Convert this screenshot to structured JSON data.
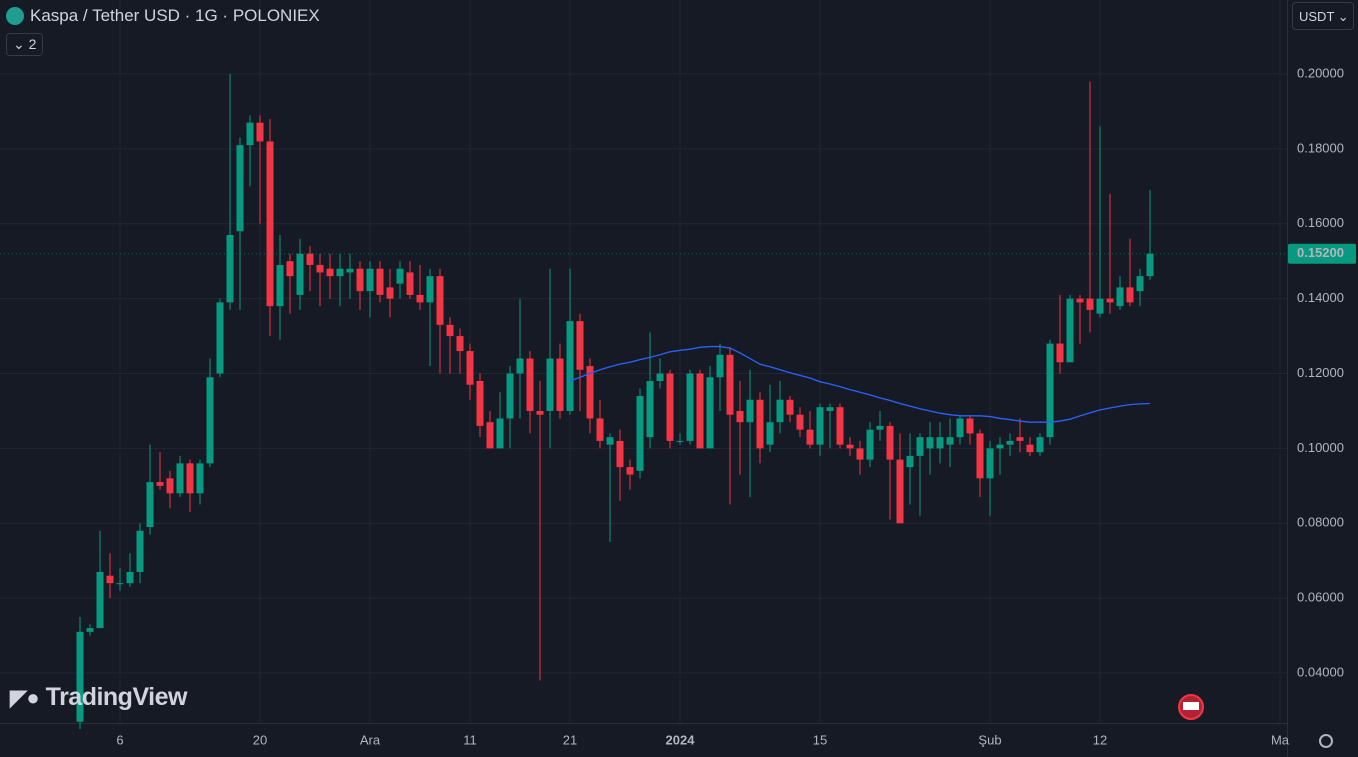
{
  "chart_data": {
    "type": "candlestick",
    "title": "Kaspa / Tether USD · 1G · POLONIEX",
    "up_color": "#089981",
    "down_color": "#f23645",
    "grid": true,
    "xlim": [
      -8,
      120.7
    ],
    "xticks": [
      {
        "value": 4,
        "label": "6"
      },
      {
        "value": 18,
        "label": "20"
      },
      {
        "value": 29,
        "label": "Ara"
      },
      {
        "value": 39,
        "label": "11"
      },
      {
        "value": 49,
        "label": "21"
      },
      {
        "value": 60,
        "label": "2024"
      },
      {
        "value": 74,
        "label": "15"
      },
      {
        "value": 91,
        "label": "Şub"
      },
      {
        "value": 102,
        "label": "12"
      },
      {
        "value": 120,
        "label": "Ma"
      }
    ],
    "ylim": [
      0.02665,
      0.21977
    ],
    "yticks": [
      {
        "value": 0.04,
        "label": "0.04000"
      },
      {
        "value": 0.06,
        "label": "0.06000"
      },
      {
        "value": 0.08,
        "label": "0.08000"
      },
      {
        "value": 0.1,
        "label": "0.10000"
      },
      {
        "value": 0.12,
        "label": "0.12000"
      },
      {
        "value": 0.14,
        "label": "0.14000"
      },
      {
        "value": 0.16,
        "label": "0.16000"
      },
      {
        "value": 0.18,
        "label": "0.18000"
      },
      {
        "value": 0.2,
        "label": "0.20000"
      }
    ],
    "last_price": {
      "value": 0.152,
      "label": "0.15200"
    },
    "open": [
      0.027,
      0.051,
      0.052,
      0.066,
      0.064,
      0.064,
      0.067,
      0.079,
      0.091,
      0.092,
      0.088,
      0.096,
      0.088,
      0.096,
      0.12,
      0.139,
      0.158,
      0.181,
      0.187,
      0.182,
      0.138,
      0.15,
      0.141,
      0.152,
      0.149,
      0.148,
      0.146,
      0.147,
      0.148,
      0.142,
      0.148,
      0.143,
      0.144,
      0.147,
      0.141,
      0.139,
      0.146,
      0.133,
      0.13,
      0.126,
      0.118,
      0.107,
      0.1,
      0.108,
      0.12,
      0.124,
      0.11,
      0.11,
      0.124,
      0.11,
      0.134,
      0.122,
      0.108,
      0.101,
      0.102,
      0.095,
      0.094,
      0.103,
      0.118,
      0.12,
      0.102,
      0.102,
      0.12,
      0.1,
      0.119,
      0.125,
      0.11,
      0.107,
      0.113,
      0.101,
      0.107,
      0.113,
      0.109,
      0.105,
      0.101,
      0.11,
      0.111,
      0.101,
      0.1,
      0.097,
      0.105,
      0.106,
      0.097,
      0.095,
      0.098,
      0.1,
      0.1,
      0.101,
      0.103,
      0.108,
      0.104,
      0.092,
      0.1,
      0.101,
      0.103,
      0.101,
      0.099,
      0.103,
      0.128,
      0.123,
      0.14,
      0.14,
      0.136,
      0.14,
      0.138,
      0.143,
      0.142,
      0.146
    ],
    "high": [
      0.055,
      0.053,
      0.078,
      0.072,
      0.068,
      0.072,
      0.08,
      0.101,
      0.099,
      0.094,
      0.098,
      0.097,
      0.097,
      0.124,
      0.14,
      0.2,
      0.183,
      0.189,
      0.189,
      0.188,
      0.157,
      0.152,
      0.156,
      0.154,
      0.152,
      0.152,
      0.152,
      0.152,
      0.15,
      0.15,
      0.15,
      0.148,
      0.15,
      0.15,
      0.149,
      0.148,
      0.148,
      0.135,
      0.132,
      0.128,
      0.12,
      0.11,
      0.115,
      0.122,
      0.14,
      0.126,
      0.118,
      0.148,
      0.128,
      0.148,
      0.136,
      0.124,
      0.113,
      0.104,
      0.105,
      0.097,
      0.116,
      0.131,
      0.124,
      0.121,
      0.104,
      0.121,
      0.121,
      0.122,
      0.128,
      0.127,
      0.118,
      0.121,
      0.115,
      0.117,
      0.118,
      0.114,
      0.111,
      0.11,
      0.112,
      0.112,
      0.112,
      0.103,
      0.102,
      0.107,
      0.11,
      0.107,
      0.104,
      0.104,
      0.104,
      0.107,
      0.107,
      0.108,
      0.109,
      0.109,
      0.105,
      0.102,
      0.103,
      0.104,
      0.108,
      0.103,
      0.104,
      0.129,
      0.141,
      0.141,
      0.141,
      0.198,
      0.186,
      0.168,
      0.146,
      0.156,
      0.148,
      0.169
    ],
    "low": [
      0.025,
      0.05,
      0.052,
      0.06,
      0.062,
      0.063,
      0.064,
      0.077,
      0.089,
      0.084,
      0.087,
      0.083,
      0.085,
      0.095,
      0.119,
      0.137,
      0.137,
      0.17,
      0.16,
      0.13,
      0.129,
      0.136,
      0.137,
      0.142,
      0.138,
      0.14,
      0.138,
      0.14,
      0.137,
      0.135,
      0.139,
      0.135,
      0.14,
      0.14,
      0.137,
      0.122,
      0.12,
      0.12,
      0.12,
      0.113,
      0.103,
      0.1,
      0.1,
      0.1,
      0.108,
      0.104,
      0.038,
      0.1,
      0.108,
      0.109,
      0.11,
      0.104,
      0.1,
      0.075,
      0.086,
      0.089,
      0.092,
      0.1,
      0.116,
      0.1,
      0.101,
      0.101,
      0.1,
      0.1,
      0.11,
      0.085,
      0.093,
      0.087,
      0.096,
      0.099,
      0.104,
      0.107,
      0.103,
      0.1,
      0.098,
      0.1,
      0.1,
      0.098,
      0.093,
      0.095,
      0.102,
      0.081,
      0.08,
      0.085,
      0.082,
      0.093,
      0.096,
      0.095,
      0.101,
      0.101,
      0.087,
      0.082,
      0.093,
      0.098,
      0.099,
      0.098,
      0.098,
      0.101,
      0.12,
      0.123,
      0.128,
      0.131,
      0.135,
      0.136,
      0.137,
      0.138,
      0.138,
      0.145
    ],
    "close": [
      0.051,
      0.052,
      0.067,
      0.064,
      0.064,
      0.067,
      0.078,
      0.091,
      0.09,
      0.088,
      0.096,
      0.088,
      0.096,
      0.119,
      0.139,
      0.157,
      0.181,
      0.187,
      0.182,
      0.138,
      0.149,
      0.146,
      0.152,
      0.149,
      0.147,
      0.146,
      0.148,
      0.148,
      0.142,
      0.148,
      0.141,
      0.14,
      0.148,
      0.141,
      0.139,
      0.146,
      0.133,
      0.13,
      0.126,
      0.117,
      0.106,
      0.1,
      0.108,
      0.12,
      0.124,
      0.11,
      0.109,
      0.124,
      0.11,
      0.134,
      0.121,
      0.108,
      0.102,
      0.103,
      0.095,
      0.093,
      0.114,
      0.118,
      0.12,
      0.102,
      0.102,
      0.12,
      0.1,
      0.119,
      0.125,
      0.109,
      0.107,
      0.113,
      0.1,
      0.107,
      0.113,
      0.109,
      0.105,
      0.101,
      0.111,
      0.111,
      0.101,
      0.1,
      0.097,
      0.105,
      0.106,
      0.097,
      0.08,
      0.098,
      0.103,
      0.103,
      0.103,
      0.103,
      0.108,
      0.104,
      0.092,
      0.1,
      0.101,
      0.102,
      0.102,
      0.099,
      0.103,
      0.128,
      0.123,
      0.14,
      0.139,
      0.137,
      0.14,
      0.139,
      0.143,
      0.139,
      0.146,
      0.152
    ],
    "line": {
      "color": "#2962ff",
      "values": [
        null,
        null,
        null,
        null,
        null,
        null,
        null,
        null,
        null,
        null,
        null,
        null,
        null,
        null,
        null,
        null,
        null,
        null,
        null,
        null,
        null,
        null,
        null,
        null,
        null,
        null,
        null,
        null,
        null,
        null,
        null,
        null,
        null,
        null,
        null,
        null,
        null,
        null,
        null,
        null,
        null,
        null,
        null,
        null,
        null,
        null,
        null,
        null,
        null,
        0.118,
        0.119,
        0.12,
        0.121,
        0.1218,
        0.1225,
        0.123,
        0.1237,
        0.1243,
        0.125,
        0.1258,
        0.1262,
        0.1265,
        0.127,
        0.1272,
        0.1272,
        0.1268,
        0.1255,
        0.124,
        0.1225,
        0.1218,
        0.121,
        0.1202,
        0.1195,
        0.1188,
        0.1178,
        0.1172,
        0.1165,
        0.1157,
        0.115,
        0.1143,
        0.1135,
        0.1128,
        0.112,
        0.1113,
        0.1106,
        0.11,
        0.1094,
        0.109,
        0.1087,
        0.1087,
        0.1087,
        0.1085,
        0.108,
        0.1077,
        0.1073,
        0.107,
        0.107,
        0.107,
        0.1073,
        0.1078,
        0.1087,
        0.1095,
        0.1103,
        0.1108,
        0.1113,
        0.1117,
        0.1119,
        0.112
      ]
    }
  },
  "ui": {
    "indicators_count": "2",
    "currency": "USDT",
    "watermark": "TradingView"
  }
}
